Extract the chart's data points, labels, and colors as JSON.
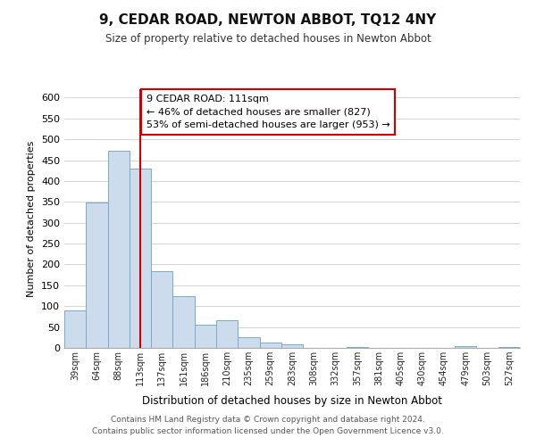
{
  "title": "9, CEDAR ROAD, NEWTON ABBOT, TQ12 4NY",
  "subtitle": "Size of property relative to detached houses in Newton Abbot",
  "xlabel": "Distribution of detached houses by size in Newton Abbot",
  "ylabel": "Number of detached properties",
  "bar_labels": [
    "39sqm",
    "64sqm",
    "88sqm",
    "113sqm",
    "137sqm",
    "161sqm",
    "186sqm",
    "210sqm",
    "235sqm",
    "259sqm",
    "283sqm",
    "308sqm",
    "332sqm",
    "357sqm",
    "381sqm",
    "405sqm",
    "430sqm",
    "454sqm",
    "479sqm",
    "503sqm",
    "527sqm"
  ],
  "bar_values": [
    90,
    348,
    472,
    430,
    184,
    123,
    56,
    67,
    25,
    12,
    8,
    0,
    0,
    2,
    0,
    0,
    0,
    0,
    5,
    0,
    2
  ],
  "bar_color": "#ccdcec",
  "bar_edge_color": "#7aaac8",
  "vline_x": 3,
  "vline_color": "#cc0000",
  "ylim": [
    0,
    620
  ],
  "yticks": [
    0,
    50,
    100,
    150,
    200,
    250,
    300,
    350,
    400,
    450,
    500,
    550,
    600
  ],
  "annotation_title": "9 CEDAR ROAD: 111sqm",
  "annotation_line1": "← 46% of detached houses are smaller (827)",
  "annotation_line2": "53% of semi-detached houses are larger (953) →",
  "annotation_box_color": "#ffffff",
  "annotation_box_edge": "#cc0000",
  "footer_line1": "Contains HM Land Registry data © Crown copyright and database right 2024.",
  "footer_line2": "Contains public sector information licensed under the Open Government Licence v3.0.",
  "bg_color": "#ffffff",
  "plot_bg_color": "#ffffff"
}
